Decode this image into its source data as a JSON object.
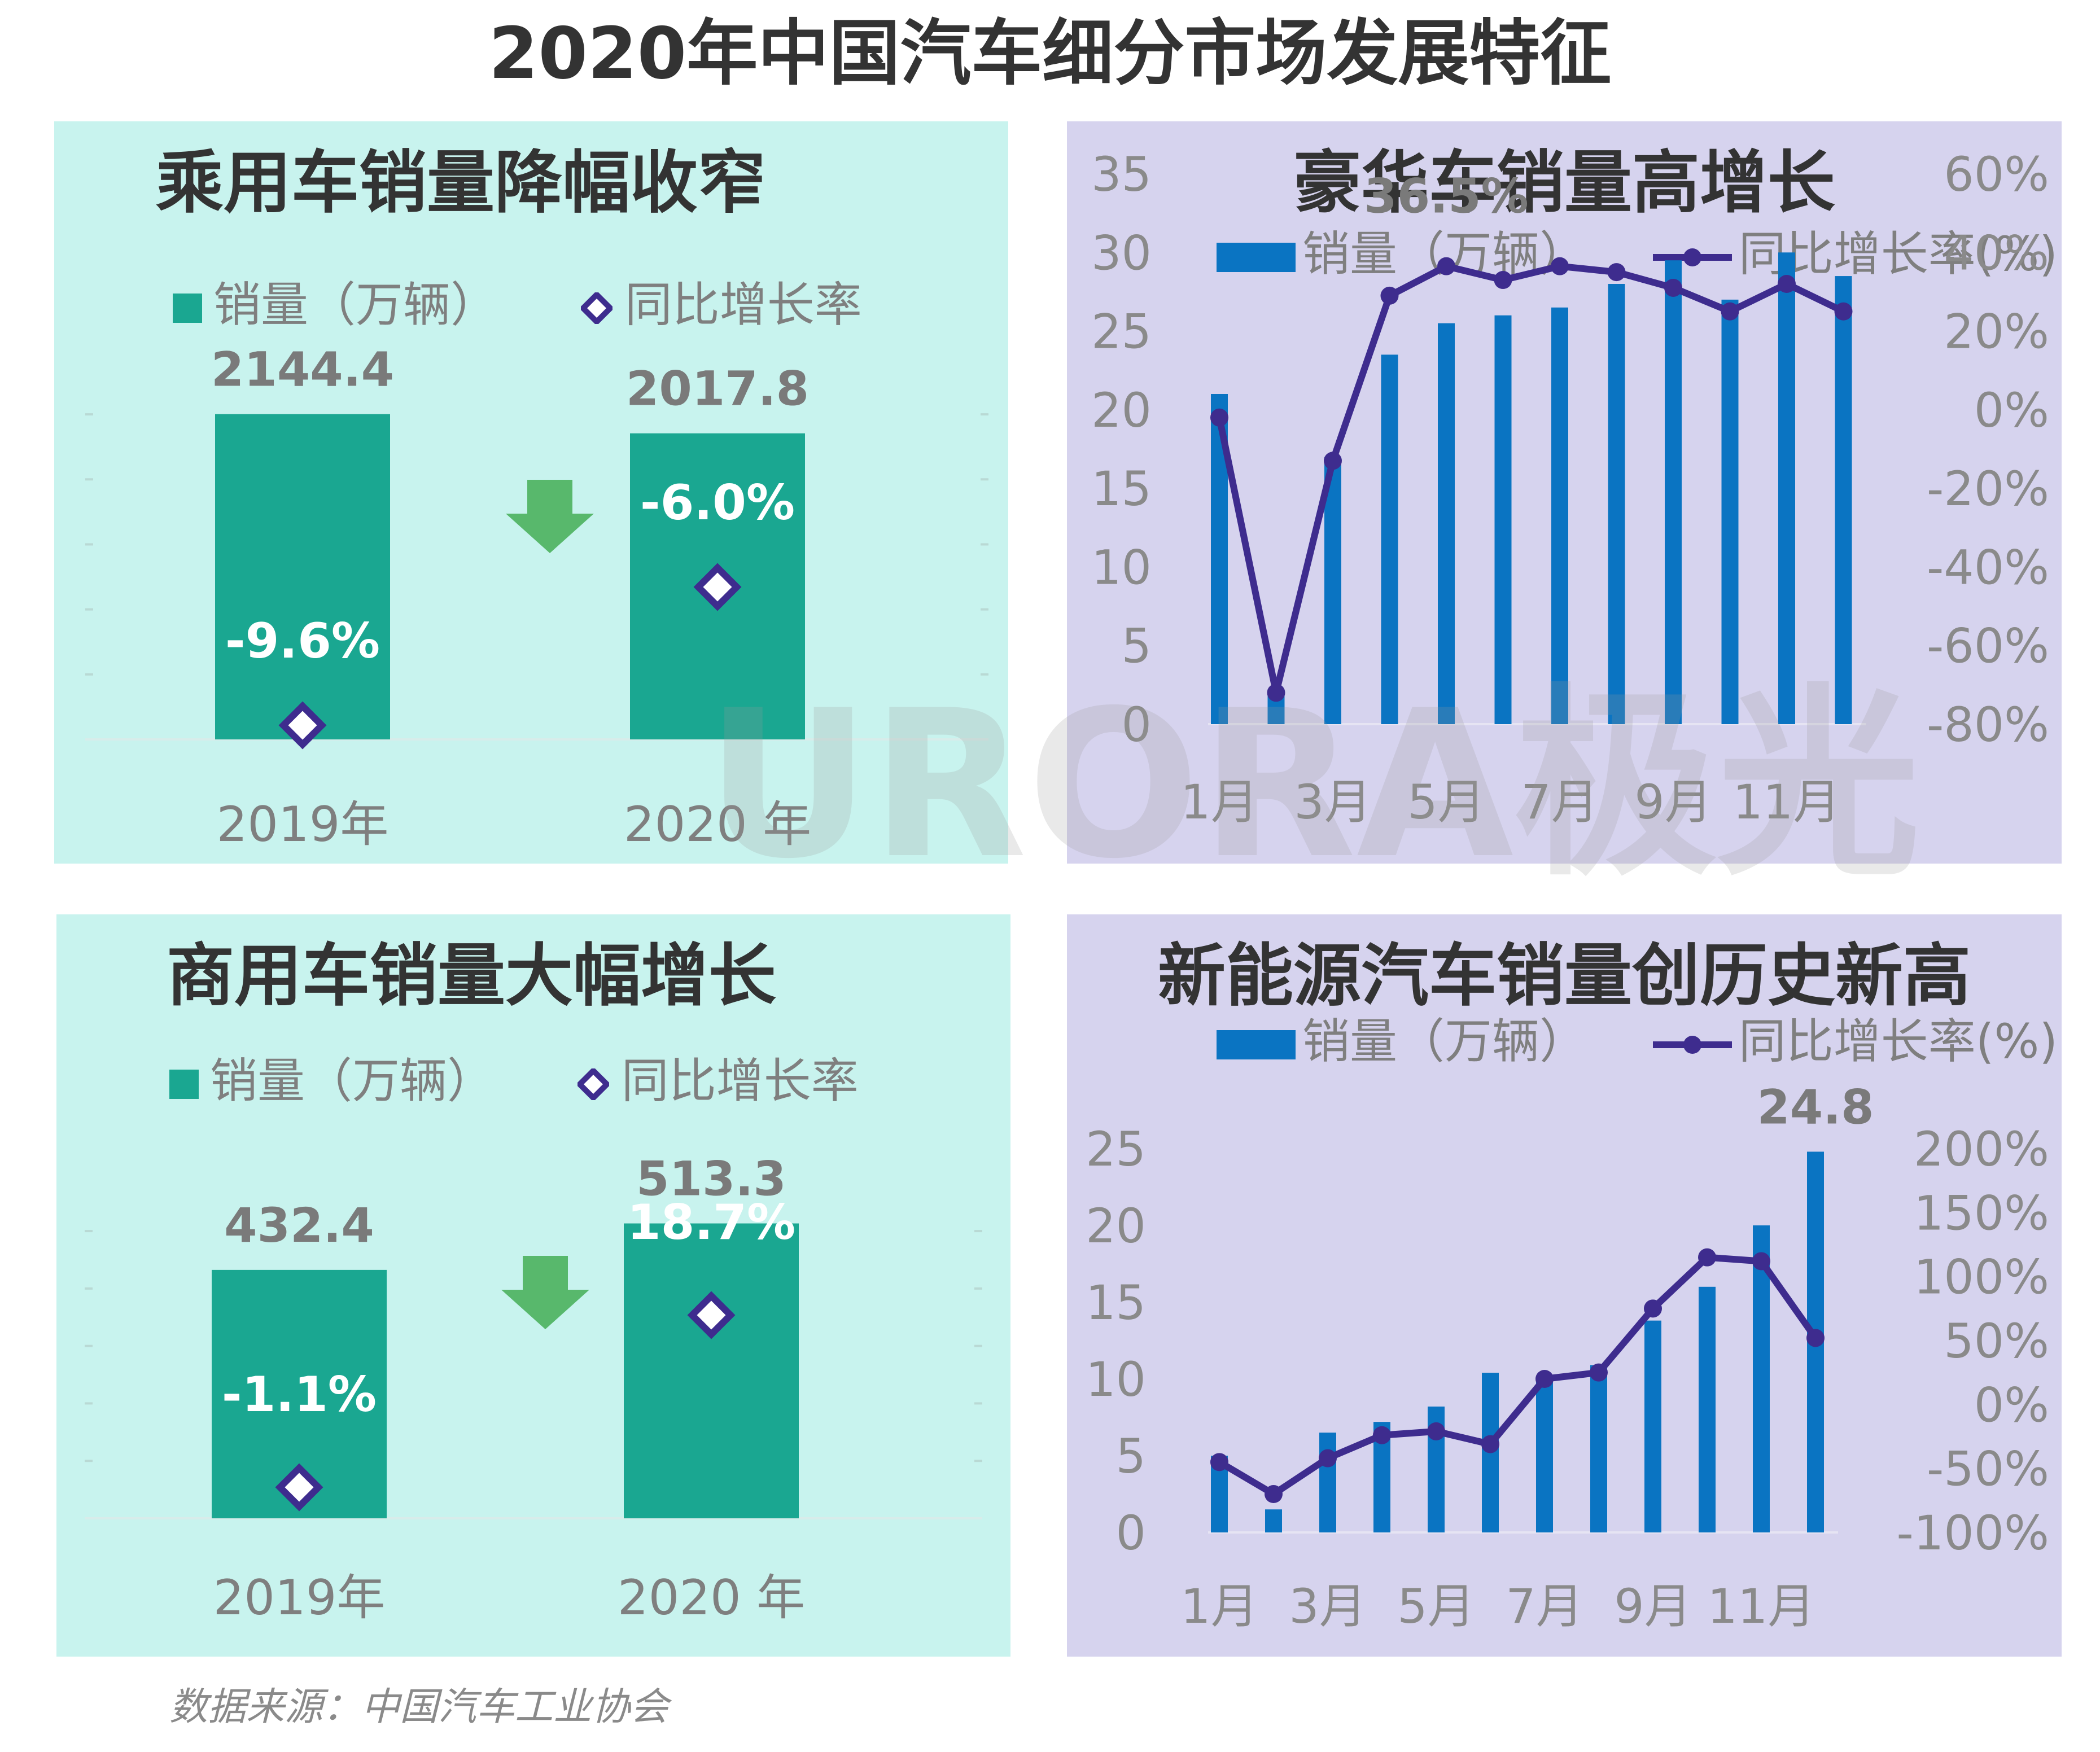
{
  "title": "2020年中国汽车细分市场发展特征",
  "source": "数据来源：中国汽车工业协会",
  "watermark": "URORA极光",
  "colors": {
    "teal_bg": "#c8f3ee",
    "purple_bg": "#d6d3ee",
    "teal_bar": "#1aa791",
    "blue_bar": "#0a74c2",
    "line": "#3e2c8e",
    "arrow": "#58b86c"
  },
  "panels": {
    "passenger": {
      "title": "乘用车销量降幅收窄",
      "legend_bar": "销量（万辆）",
      "legend_rate": "同比增长率",
      "chart_data": {
        "type": "bar",
        "categories": [
          "2019年",
          "2020 年"
        ],
        "series": [
          {
            "name": "销量（万辆）",
            "values": [
              2144.4,
              2017.8
            ],
            "labels": [
              "2144.4",
              "2017.8"
            ]
          },
          {
            "name": "同比增长率",
            "values": [
              -9.6,
              -6.0
            ],
            "labels": [
              "-9.6%",
              "-6.0%"
            ]
          }
        ],
        "ylim": [
          0,
          2400
        ]
      }
    },
    "commercial": {
      "title": "商用车销量大幅增长",
      "legend_bar": "销量（万辆）",
      "legend_rate": "同比增长率",
      "chart_data": {
        "type": "bar",
        "categories": [
          "2019年",
          "2020 年"
        ],
        "series": [
          {
            "name": "销量（万辆）",
            "values": [
              432.4,
              513.3
            ],
            "labels": [
              "432.4",
              "513.3"
            ]
          },
          {
            "name": "同比增长率",
            "values": [
              -1.1,
              18.7
            ],
            "labels": [
              "-1.1%",
              "18.7%"
            ]
          }
        ],
        "ylim": [
          0,
          560
        ]
      }
    },
    "luxury": {
      "title": "豪华车销量高增长",
      "legend_bar": "销量（万辆）",
      "legend_line": "同比增长率(%)",
      "chart_data": {
        "type": "bar",
        "x": [
          "1月",
          "2月",
          "3月",
          "4月",
          "5月",
          "6月",
          "7月",
          "8月",
          "9月",
          "10月",
          "11月",
          "12月"
        ],
        "x_tick_labels": [
          "1月",
          "3月",
          "5月",
          "7月",
          "9月",
          "11月"
        ],
        "series": [
          {
            "name": "销量（万辆）",
            "axis": "left",
            "values": [
              21,
              2,
              17,
              23.5,
              25.5,
              26,
              26.5,
              28,
              29.5,
              27,
              30,
              28.5
            ]
          },
          {
            "name": "同比增长率(%)",
            "axis": "right",
            "type": "line",
            "values": [
              -2,
              -72,
              -13,
              29,
              36.5,
              33,
              36.5,
              35,
              31,
              25,
              32,
              25
            ]
          }
        ],
        "annotation": "36.5%",
        "y_left": {
          "min": 0,
          "max": 35,
          "ticks": [
            "0",
            "5",
            "10",
            "15",
            "20",
            "25",
            "30",
            "35"
          ]
        },
        "y_right": {
          "min": -80,
          "max": 60,
          "ticks": [
            "-80%",
            "-60%",
            "-40%",
            "-20%",
            "0%",
            "20%",
            "40%",
            "60%"
          ]
        }
      }
    },
    "nev": {
      "title": "新能源汽车销量创历史新高",
      "legend_bar": "销量（万辆）",
      "legend_line": "同比增长率(%)",
      "chart_data": {
        "type": "bar",
        "x": [
          "1月",
          "2月",
          "3月",
          "4月",
          "5月",
          "6月",
          "7月",
          "8月",
          "9月",
          "10月",
          "11月",
          "12月"
        ],
        "x_tick_labels": [
          "1月",
          "3月",
          "5月",
          "7月",
          "9月",
          "11月"
        ],
        "series": [
          {
            "name": "销量（万辆）",
            "axis": "left",
            "values": [
              5,
              1.5,
              6.5,
              7.2,
              8.2,
              10.4,
              9.8,
              10.9,
              13.8,
              16,
              20,
              24.8
            ]
          },
          {
            "name": "同比增长率(%)",
            "axis": "right",
            "type": "line",
            "values": [
              -45,
              -70,
              -42,
              -24,
              -21,
              -31,
              20,
              25,
              75,
              115,
              112,
              52
            ]
          }
        ],
        "annotation": "24.8",
        "y_left": {
          "min": 0,
          "max": 25,
          "ticks": [
            "0",
            "5",
            "10",
            "15",
            "20",
            "25"
          ]
        },
        "y_right": {
          "min": -100,
          "max": 200,
          "ticks": [
            "-100%",
            "-50%",
            "0%",
            "50%",
            "100%",
            "150%",
            "200%"
          ]
        }
      }
    }
  }
}
